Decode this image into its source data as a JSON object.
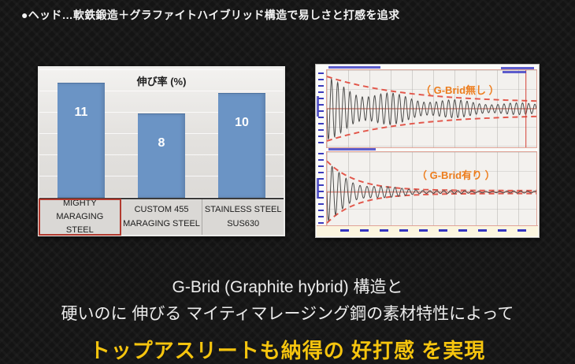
{
  "slide": {
    "headline": "●ヘッド…軟鉄鍛造＋グラファイトハイブリッド構造で易しさと打感を追求",
    "footer": {
      "line1": "G-Brid (Graphite hybrid) 構造と",
      "line2": "硬いのに 伸びる マイティマレージング鋼の素材特性によって",
      "highlight": "トップアスリートも納得の 好打感 を実現",
      "highlight_color": "#f6c50e"
    }
  },
  "chart_data": [
    {
      "type": "bar",
      "title": "伸び率 (%)",
      "categories": [
        "MIGHTY MARAGING\nSTEEL",
        "CUSTOM 455\nMARAGING STEEL",
        "STAINLESS STEEL\nSUS630"
      ],
      "values": [
        11,
        8,
        10
      ],
      "ylim": [
        0,
        12.5
      ],
      "gridline_step": 2,
      "grid": true,
      "bar_color": "#6b94c5",
      "highlighted_category_index": 0,
      "highlight_box_color": "#b23a2f"
    },
    {
      "type": "line",
      "label": "（ G-Brid無し ）",
      "label_color": "#ed7d1d",
      "center": 0.5,
      "envelope": {
        "start": 0.95,
        "decay": 2.6,
        "floor": 0.17
      },
      "wave": {
        "start": 0.92,
        "decay": 2.6,
        "floor": 0.1,
        "cycles": 34
      },
      "marker_line_x": 0.95,
      "envelope_color": "#e2574b",
      "wave_color": "#4b4b49",
      "y_tick_count": 12,
      "x_tick_count": 0
    },
    {
      "type": "line",
      "label": "（ G-Brid有り ）",
      "label_color": "#ed7d1d",
      "center": 0.54,
      "envelope": {
        "start": 0.95,
        "decay": 7.2,
        "floor": 0.045
      },
      "wave": {
        "start": 0.92,
        "decay": 6.2,
        "floor": 0.028,
        "cycles": 30
      },
      "envelope_color": "#e2574b",
      "wave_color": "#4b4b49",
      "y_tick_count": 12,
      "x_tick_count": 10
    }
  ]
}
